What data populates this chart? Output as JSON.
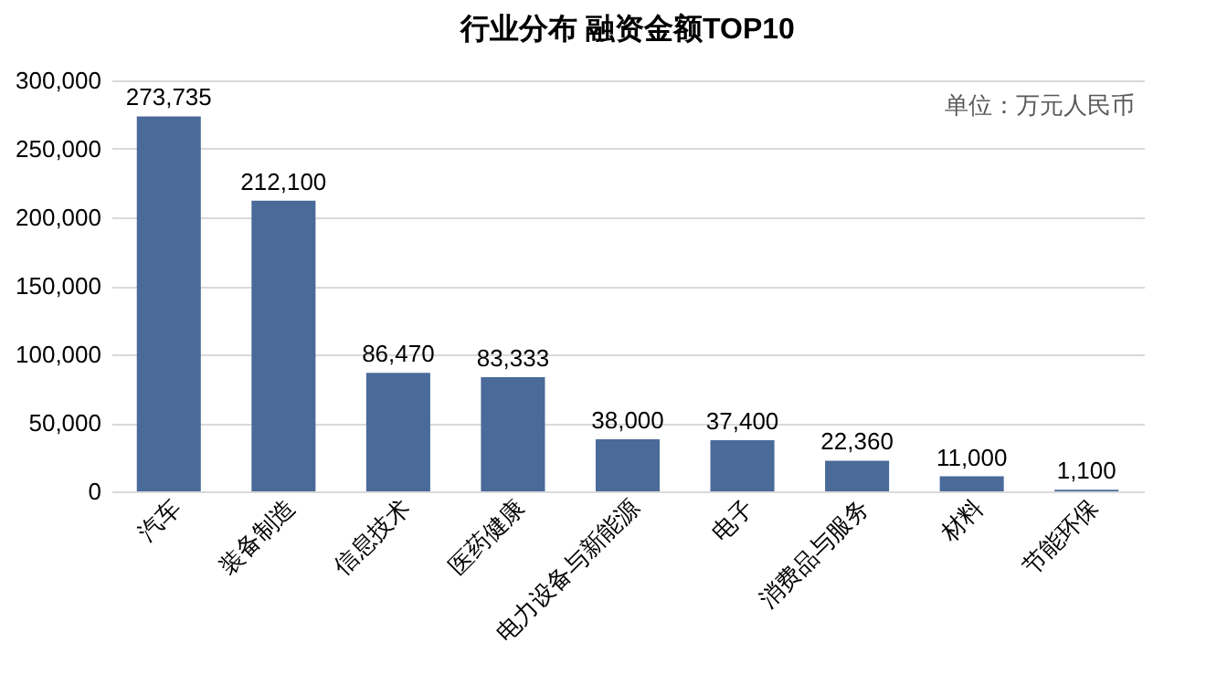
{
  "chart_data": {
    "type": "bar",
    "title": "行业分布 融资金额TOP10",
    "categories": [
      "汽车",
      "装备制造",
      "信息技术",
      "医药健康",
      "电力设备与新能源",
      "电子",
      "消费品与服务",
      "材料",
      "节能环保"
    ],
    "values": [
      273735,
      212100,
      86470,
      83333,
      38000,
      37400,
      22360,
      11000,
      1100
    ],
    "value_labels": [
      "273,735",
      "212,100",
      "86,470",
      "83,333",
      "38,000",
      "37,400",
      "22,360",
      "11,000",
      "1,100"
    ],
    "color": "#4a6a9a",
    "ylim": [
      0,
      300000
    ],
    "yticks": [
      {
        "value": 0,
        "label": "0"
      },
      {
        "value": 50000,
        "label": "50,000"
      },
      {
        "value": 100000,
        "label": "100,000"
      },
      {
        "value": 150000,
        "label": "150,000"
      },
      {
        "value": 200000,
        "label": "200,000"
      },
      {
        "value": 250000,
        "label": "250,000"
      },
      {
        "value": 300000,
        "label": "300,000"
      }
    ],
    "grid": "y",
    "annotations": [
      "单位：万元人民币"
    ]
  }
}
